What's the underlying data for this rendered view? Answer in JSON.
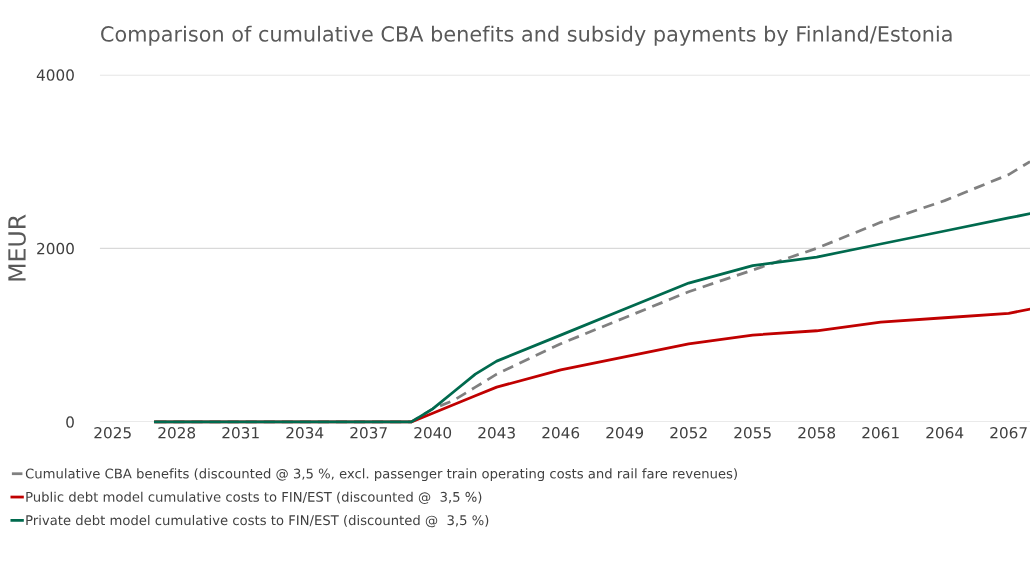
{
  "chart_data": {
    "type": "line",
    "title": "Comparison of cumulative CBA benefits and subsidy payments by Finland/Estonia",
    "ylabel": "MEUR",
    "xlim": [
      2024.4,
      2068
    ],
    "xticks": [
      2025,
      2028,
      2031,
      2034,
      2037,
      2040,
      2043,
      2046,
      2049,
      2052,
      2055,
      2058,
      2061,
      2064,
      2067
    ],
    "ylim": [
      0,
      4000
    ],
    "yticks": [
      0,
      2000,
      4000
    ],
    "grid": "y",
    "legend": "bottom",
    "series": [
      {
        "name": "Cumulative CBA benefits (discounted @ 3,5 %, excl. passenger train operating costs and rail fare revenues)",
        "color": "#808080",
        "line_style": "dashed",
        "x": [
          2027,
          2039,
          2040,
          2041,
          2042,
          2043,
          2046,
          2049,
          2052,
          2055,
          2058,
          2061,
          2064,
          2067,
          2068
        ],
        "values": [
          0,
          0,
          150,
          250,
          400,
          550,
          900,
          1200,
          1500,
          1750,
          2000,
          2300,
          2550,
          2850,
          3000
        ]
      },
      {
        "name": "Public debt model cumulative costs to FIN/EST (discounted @  3,5 %)",
        "color": "#c00000",
        "line_style": "solid",
        "x": [
          2027,
          2039,
          2040,
          2041,
          2042,
          2043,
          2046,
          2049,
          2052,
          2055,
          2058,
          2061,
          2064,
          2067,
          2068
        ],
        "values": [
          0,
          0,
          100,
          200,
          300,
          400,
          600,
          750,
          900,
          1000,
          1050,
          1150,
          1200,
          1250,
          1300
        ]
      },
      {
        "name": "Private debt model cumulative costs to FIN/EST (discounted @  3,5 %)",
        "color": "#006a4e",
        "line_style": "solid",
        "x": [
          2027,
          2039,
          2040,
          2041,
          2042,
          2043,
          2046,
          2049,
          2052,
          2055,
          2058,
          2061,
          2064,
          2067,
          2068
        ],
        "values": [
          0,
          0,
          150,
          350,
          550,
          700,
          1000,
          1300,
          1600,
          1800,
          1900,
          2050,
          2200,
          2350,
          2400
        ]
      }
    ]
  }
}
